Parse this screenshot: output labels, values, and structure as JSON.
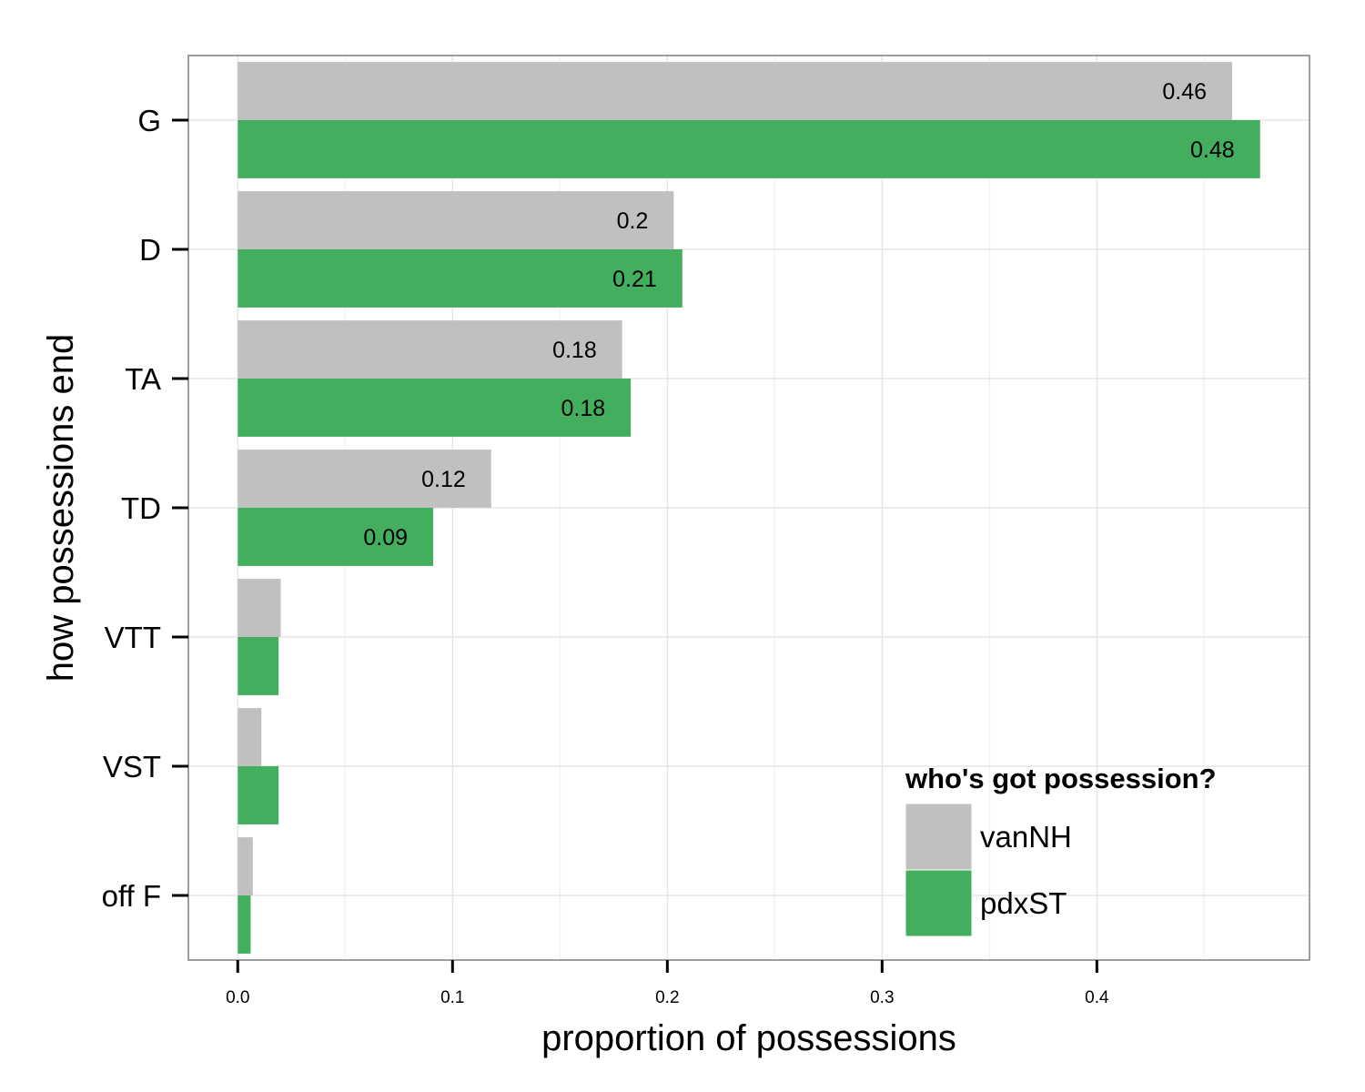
{
  "chart_data": {
    "type": "bar",
    "orientation": "horizontal",
    "categories": [
      "G",
      "D",
      "TA",
      "TD",
      "VTT",
      "VST",
      "off F"
    ],
    "series": [
      {
        "name": "vanNH",
        "color": "#c0c0c0",
        "values": [
          0.463,
          0.203,
          0.179,
          0.118,
          0.02,
          0.011,
          0.007
        ],
        "labels": [
          "0.46",
          "0.2",
          "0.18",
          "0.12",
          "",
          "",
          ""
        ]
      },
      {
        "name": "pdxST",
        "color": "#43ae5e",
        "values": [
          0.476,
          0.207,
          0.183,
          0.091,
          0.019,
          0.019,
          0.006
        ],
        "labels": [
          "0.48",
          "0.21",
          "0.18",
          "0.09",
          "",
          "",
          ""
        ]
      }
    ],
    "xlabel": "proportion of possessions",
    "ylabel": "how possessions end",
    "xlim": [
      -0.023,
      0.499
    ],
    "x_ticks": [
      0.0,
      0.1,
      0.2,
      0.3,
      0.4
    ],
    "x_tick_labels": [
      "0.0",
      "0.1",
      "0.2",
      "0.3",
      "0.4"
    ],
    "grid": true,
    "legend": {
      "title": "who's got possession?",
      "position": "bottom-right"
    }
  }
}
